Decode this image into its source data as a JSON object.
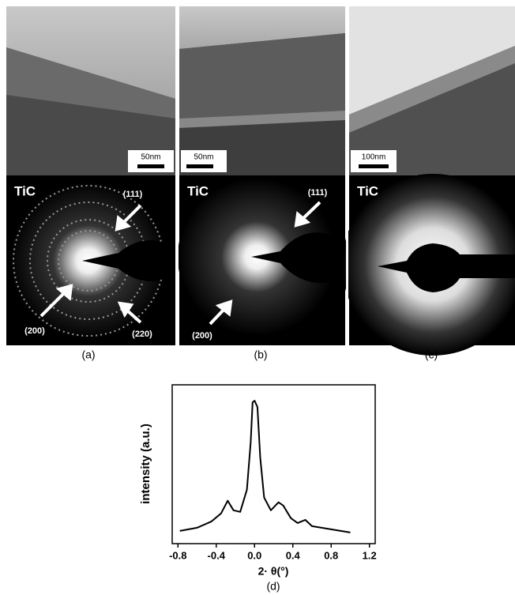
{
  "panels": [
    {
      "label": "(a)",
      "material": "TiC",
      "scale_bar": "50nm",
      "rings": [
        "(111)",
        "(200)",
        "(220)"
      ]
    },
    {
      "label": "(b)",
      "material": "TiC",
      "scale_bar": "50nm",
      "rings": [
        "(111)",
        "(200)"
      ]
    },
    {
      "label": "(c)",
      "material": "TiC",
      "scale_bar": "100nm"
    }
  ],
  "chart_data": {
    "type": "line",
    "panel_label": "(d)",
    "x_label": "2· θ(°)",
    "y_label": "intensity (a.u.)",
    "x": [
      -0.78,
      -0.6,
      -0.45,
      -0.35,
      -0.28,
      -0.22,
      -0.15,
      -0.08,
      -0.04,
      -0.02,
      0,
      0.03,
      0.06,
      0.1,
      0.17,
      0.25,
      0.3,
      0.38,
      0.45,
      0.53,
      0.6,
      0.8,
      1.0
    ],
    "values": [
      0.08,
      0.1,
      0.14,
      0.19,
      0.27,
      0.21,
      0.2,
      0.34,
      0.64,
      0.89,
      0.9,
      0.86,
      0.54,
      0.29,
      0.21,
      0.26,
      0.24,
      0.16,
      0.13,
      0.15,
      0.11,
      0.09,
      0.07
    ],
    "color": "#000000",
    "xlim": [
      -0.86,
      1.26
    ],
    "ylim": [
      0,
      1
    ],
    "xticks": [
      -0.8,
      -0.4,
      {
        "value": 0,
        "label": "0.0"
      },
      0.4,
      0.8,
      1.2
    ]
  }
}
